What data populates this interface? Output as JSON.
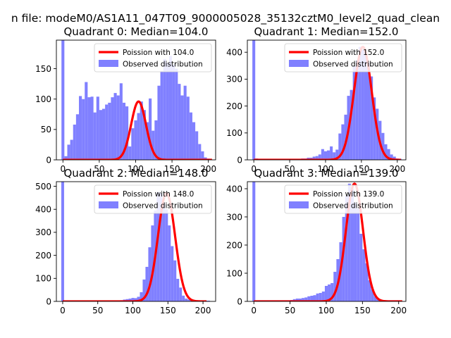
{
  "figure": {
    "suptitle": "n file: modeM0/AS1A11_047T09_9000005028_35132cztM0_level2_quad_clean",
    "colors": {
      "hist": "#8080ff",
      "fit": "#ff0000",
      "axes": "#000000",
      "background": "#ffffff"
    }
  },
  "chart_data": [
    {
      "type": "bar",
      "title": "Quadrant 0: Median=104.0",
      "xlim": [
        -9,
        210
      ],
      "ylim": [
        0,
        197
      ],
      "xticks": [
        0,
        50,
        100,
        150,
        200
      ],
      "yticks": [
        0,
        50,
        100,
        150
      ],
      "bin_width": 4,
      "bin_starts": [
        -2,
        2,
        6,
        10,
        14,
        18,
        22,
        26,
        30,
        34,
        38,
        42,
        46,
        50,
        54,
        58,
        62,
        66,
        70,
        74,
        78,
        82,
        86,
        90,
        94,
        98,
        102,
        106,
        110,
        114,
        118,
        122,
        126,
        130,
        134,
        138,
        142,
        146,
        150,
        154,
        158,
        162,
        166,
        170,
        174,
        178,
        182,
        186,
        190,
        194,
        198
      ],
      "hist_values": [
        197,
        6,
        25,
        33,
        58,
        75,
        105,
        100,
        128,
        103,
        104,
        78,
        104,
        82,
        84,
        91,
        94,
        103,
        110,
        106,
        126,
        94,
        88,
        22,
        52,
        65,
        77,
        96,
        82,
        62,
        101,
        48,
        65,
        122,
        146,
        166,
        160,
        171,
        157,
        150,
        125,
        106,
        122,
        104,
        78,
        62,
        47,
        26,
        14,
        4,
        2
      ],
      "fit_mean": 104.0,
      "legend": [
        "Poission with 104.0",
        "Observed distribution"
      ],
      "legend_position": "upper right",
      "grid": false
    },
    {
      "type": "bar",
      "title": "Quadrant 1: Median=152.0",
      "xlim": [
        -9,
        212
      ],
      "ylim": [
        0,
        445
      ],
      "xticks": [
        0,
        50,
        100,
        150,
        200
      ],
      "yticks": [
        0,
        100,
        200,
        300,
        400
      ],
      "bin_width": 4,
      "bin_starts": [
        -2,
        2,
        6,
        10,
        14,
        18,
        22,
        26,
        30,
        34,
        38,
        42,
        46,
        50,
        54,
        58,
        62,
        66,
        70,
        74,
        78,
        82,
        86,
        90,
        94,
        98,
        102,
        106,
        110,
        114,
        118,
        122,
        126,
        130,
        134,
        138,
        142,
        146,
        150,
        154,
        158,
        162,
        166,
        170,
        174,
        178,
        182,
        186,
        190,
        194,
        198,
        202
      ],
      "hist_values": [
        445,
        5,
        4,
        4,
        4,
        4,
        4,
        4,
        4,
        4,
        4,
        4,
        4,
        4,
        4,
        4,
        4,
        5,
        5,
        8,
        8,
        12,
        14,
        20,
        40,
        32,
        35,
        50,
        28,
        38,
        98,
        132,
        168,
        238,
        260,
        348,
        370,
        420,
        410,
        400,
        362,
        310,
        232,
        190,
        145,
        100,
        58,
        40,
        20,
        12,
        5,
        4
      ],
      "fit_mean": 152.0,
      "legend": [
        "Poission with 152.0",
        "Observed distribution"
      ],
      "legend_position": "upper right",
      "grid": false
    },
    {
      "type": "bar",
      "title": "Quadrant 2: Median=148.0",
      "xlim": [
        -9,
        218
      ],
      "ylim": [
        0,
        520
      ],
      "xticks": [
        0,
        50,
        100,
        150,
        200
      ],
      "yticks": [
        0,
        100,
        200,
        300,
        400,
        500
      ],
      "bin_width": 4,
      "bin_starts": [
        -2,
        2,
        6,
        10,
        14,
        18,
        22,
        26,
        30,
        34,
        38,
        42,
        46,
        50,
        54,
        58,
        62,
        66,
        70,
        74,
        78,
        82,
        86,
        90,
        94,
        98,
        102,
        106,
        110,
        114,
        118,
        122,
        126,
        130,
        134,
        138,
        142,
        146,
        150,
        154,
        158,
        162,
        166,
        170,
        174,
        178,
        182,
        186,
        190,
        194,
        198,
        202,
        206
      ],
      "hist_values": [
        520,
        3,
        3,
        3,
        3,
        3,
        3,
        3,
        3,
        3,
        3,
        3,
        3,
        3,
        3,
        3,
        3,
        3,
        3,
        4,
        4,
        5,
        8,
        10,
        12,
        15,
        14,
        20,
        40,
        95,
        150,
        235,
        330,
        395,
        475,
        470,
        430,
        400,
        330,
        240,
        178,
        98,
        60,
        25,
        12,
        8,
        5,
        3,
        3,
        3,
        3,
        3,
        3
      ],
      "fit_mean": 148.0,
      "legend": [
        "Poission with 148.0",
        "Observed distribution"
      ],
      "legend_position": "upper right",
      "grid": false
    },
    {
      "type": "bar",
      "title": "Quadrant 3: Median=139.0",
      "xlim": [
        -9,
        210
      ],
      "ylim": [
        0,
        425
      ],
      "xticks": [
        0,
        50,
        100,
        150,
        200
      ],
      "yticks": [
        0,
        100,
        200,
        300,
        400
      ],
      "bin_width": 4,
      "bin_starts": [
        -2,
        2,
        6,
        10,
        14,
        18,
        22,
        26,
        30,
        34,
        38,
        42,
        46,
        50,
        54,
        58,
        62,
        66,
        70,
        74,
        78,
        82,
        86,
        90,
        94,
        98,
        102,
        106,
        110,
        114,
        118,
        122,
        126,
        130,
        134,
        138,
        142,
        146,
        150,
        154,
        158,
        162,
        166,
        170,
        174,
        178,
        182,
        186,
        190,
        194,
        198
      ],
      "hist_values": [
        425,
        4,
        4,
        4,
        4,
        4,
        4,
        4,
        4,
        4,
        4,
        4,
        4,
        5,
        8,
        10,
        10,
        12,
        14,
        18,
        20,
        22,
        28,
        30,
        35,
        55,
        60,
        65,
        105,
        150,
        210,
        300,
        375,
        418,
        400,
        350,
        330,
        240,
        185,
        135,
        75,
        42,
        18,
        10,
        5,
        4,
        4,
        4,
        4,
        4,
        4
      ],
      "fit_mean": 139.0,
      "legend": [
        "Poission with 139.0",
        "Observed distribution"
      ],
      "legend_position": "upper right",
      "grid": false
    }
  ]
}
